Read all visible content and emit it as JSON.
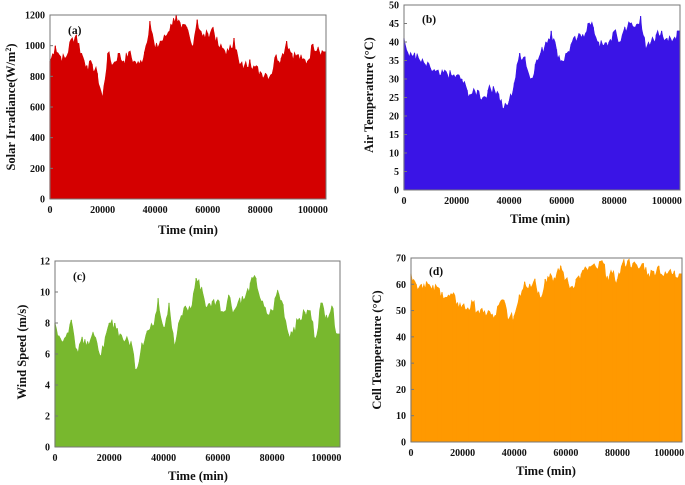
{
  "chart_data": [
    {
      "type": "area",
      "panel_label": "(a)",
      "title": "",
      "xlabel": "Time (min)",
      "ylabel": "Solar Irradiance(W/m²)",
      "ylabel_main": "Solar Irradiance(W/m",
      "ylabel_sup": "2",
      "ylabel_tail": ")",
      "color": "#d40000",
      "xlim": [
        0,
        105000
      ],
      "ylim": [
        0,
        1200
      ],
      "xticks": [
        0,
        20000,
        40000,
        60000,
        80000,
        100000
      ],
      "yticks": [
        0,
        200,
        400,
        600,
        800,
        1000,
        1200
      ],
      "grid": false,
      "x": [
        0,
        2000,
        4000,
        6000,
        8000,
        10000,
        12000,
        14000,
        16000,
        18000,
        20000,
        22000,
        24000,
        26000,
        28000,
        30000,
        32000,
        34000,
        36000,
        38000,
        40000,
        42000,
        44000,
        46000,
        48000,
        50000,
        52000,
        54000,
        56000,
        58000,
        60000,
        62000,
        64000,
        66000,
        68000,
        70000,
        72000,
        74000,
        76000,
        78000,
        80000,
        82000,
        84000,
        86000,
        88000,
        90000,
        92000,
        94000,
        96000,
        98000,
        100000,
        102000,
        104000
      ],
      "values": [
        900,
        1000,
        930,
        920,
        1040,
        1070,
        950,
        870,
        880,
        820,
        660,
        950,
        880,
        950,
        900,
        960,
        900,
        880,
        960,
        1160,
        980,
        1030,
        1060,
        1140,
        1200,
        1110,
        1120,
        1000,
        1170,
        1060,
        1080,
        1120,
        1000,
        980,
        960,
        1050,
        880,
        870,
        910,
        860,
        830,
        820,
        810,
        940,
        920,
        1030,
        950,
        940,
        910,
        900,
        1010,
        990,
        960
      ]
    },
    {
      "type": "area",
      "panel_label": "(b)",
      "title": "",
      "xlabel": "Time (min)",
      "ylabel": "Air Temperature (°C)",
      "color": "#3a14e6",
      "xlim": [
        0,
        105000
      ],
      "ylim": [
        0,
        50
      ],
      "xticks": [
        0,
        20000,
        40000,
        60000,
        80000,
        100000
      ],
      "yticks": [
        0,
        5,
        10,
        15,
        20,
        25,
        30,
        35,
        40,
        45,
        50
      ],
      "grid": false,
      "x": [
        0,
        2000,
        4000,
        6000,
        8000,
        10000,
        12000,
        14000,
        16000,
        18000,
        20000,
        22000,
        24000,
        26000,
        28000,
        30000,
        32000,
        34000,
        36000,
        38000,
        40000,
        42000,
        44000,
        46000,
        48000,
        50000,
        52000,
        54000,
        56000,
        58000,
        60000,
        62000,
        64000,
        66000,
        68000,
        70000,
        72000,
        74000,
        76000,
        78000,
        80000,
        82000,
        84000,
        86000,
        88000,
        90000,
        92000,
        94000,
        96000,
        98000,
        100000,
        102000,
        104000
      ],
      "values": [
        41,
        36,
        37,
        35,
        34,
        33,
        32,
        31,
        32,
        31,
        31,
        30,
        27,
        26,
        27,
        25,
        27,
        28,
        26,
        22,
        24,
        29,
        37,
        36,
        30,
        34,
        37,
        40,
        43,
        38,
        35,
        37,
        40,
        41,
        42,
        45,
        44,
        40,
        39,
        40,
        43,
        40,
        44,
        45,
        44,
        47,
        38,
        40,
        42,
        43,
        41,
        40,
        43
      ]
    },
    {
      "type": "area",
      "panel_label": "(c)",
      "title": "",
      "xlabel": "Time (min)",
      "ylabel": "Wind Speed (m/s)",
      "color": "#78b82e",
      "xlim": [
        0,
        105000
      ],
      "ylim": [
        0,
        12
      ],
      "xticks": [
        0,
        20000,
        40000,
        60000,
        80000,
        100000
      ],
      "yticks": [
        0,
        2,
        4,
        6,
        8,
        10,
        12
      ],
      "grid": false,
      "x": [
        0,
        2000,
        4000,
        6000,
        8000,
        10000,
        12000,
        14000,
        16000,
        18000,
        20000,
        22000,
        24000,
        26000,
        28000,
        30000,
        32000,
        34000,
        36000,
        38000,
        40000,
        42000,
        44000,
        46000,
        48000,
        50000,
        52000,
        54000,
        56000,
        58000,
        60000,
        62000,
        64000,
        66000,
        68000,
        70000,
        72000,
        74000,
        76000,
        78000,
        80000,
        82000,
        84000,
        86000,
        88000,
        90000,
        92000,
        94000,
        96000,
        98000,
        100000,
        102000,
        104000
      ],
      "values": [
        8.0,
        7.0,
        7.1,
        8.2,
        6.3,
        7.1,
        6.8,
        7.4,
        6.2,
        6.4,
        8.0,
        8.0,
        7.3,
        6.9,
        6.8,
        5.0,
        6.7,
        7.5,
        7.8,
        9.6,
        7.7,
        9.3,
        6.5,
        8.2,
        9.1,
        8.9,
        10.9,
        10.3,
        9.0,
        9.4,
        9.5,
        8.7,
        9.8,
        8.8,
        9.6,
        9.6,
        10.6,
        10.9,
        9.4,
        8.6,
        8.8,
        10.1,
        9.2,
        7.3,
        7.7,
        8.3,
        8.7,
        8.8,
        7.0,
        9.3,
        8.5,
        9.1,
        7.3
      ]
    },
    {
      "type": "area",
      "panel_label": "(d)",
      "title": "",
      "xlabel": "Time (min)",
      "ylabel": "Cell Temperature  (°C)",
      "color": "#ff9900",
      "xlim": [
        0,
        105000
      ],
      "ylim": [
        0,
        70
      ],
      "xticks": [
        0,
        20000,
        40000,
        60000,
        80000,
        100000
      ],
      "yticks": [
        0,
        10,
        20,
        30,
        40,
        50,
        60,
        70
      ],
      "grid": false,
      "x": [
        0,
        2000,
        4000,
        6000,
        8000,
        10000,
        12000,
        14000,
        16000,
        18000,
        20000,
        22000,
        24000,
        26000,
        28000,
        30000,
        32000,
        34000,
        36000,
        38000,
        40000,
        42000,
        44000,
        46000,
        48000,
        50000,
        52000,
        54000,
        56000,
        58000,
        60000,
        62000,
        64000,
        66000,
        68000,
        70000,
        72000,
        74000,
        76000,
        78000,
        80000,
        82000,
        84000,
        86000,
        88000,
        90000,
        92000,
        94000,
        96000,
        98000,
        100000,
        102000,
        104000
      ],
      "values": [
        64,
        60,
        60,
        61,
        58,
        59,
        57,
        55,
        56,
        53,
        52,
        51,
        53,
        50,
        49,
        50,
        47,
        52,
        54,
        47,
        48,
        56,
        61,
        60,
        62,
        55,
        62,
        64,
        62,
        67,
        62,
        59,
        62,
        64,
        66,
        67,
        66,
        69,
        63,
        64,
        62,
        68,
        69,
        68,
        66,
        68,
        64,
        65,
        67,
        63,
        65,
        65,
        64
      ]
    }
  ]
}
